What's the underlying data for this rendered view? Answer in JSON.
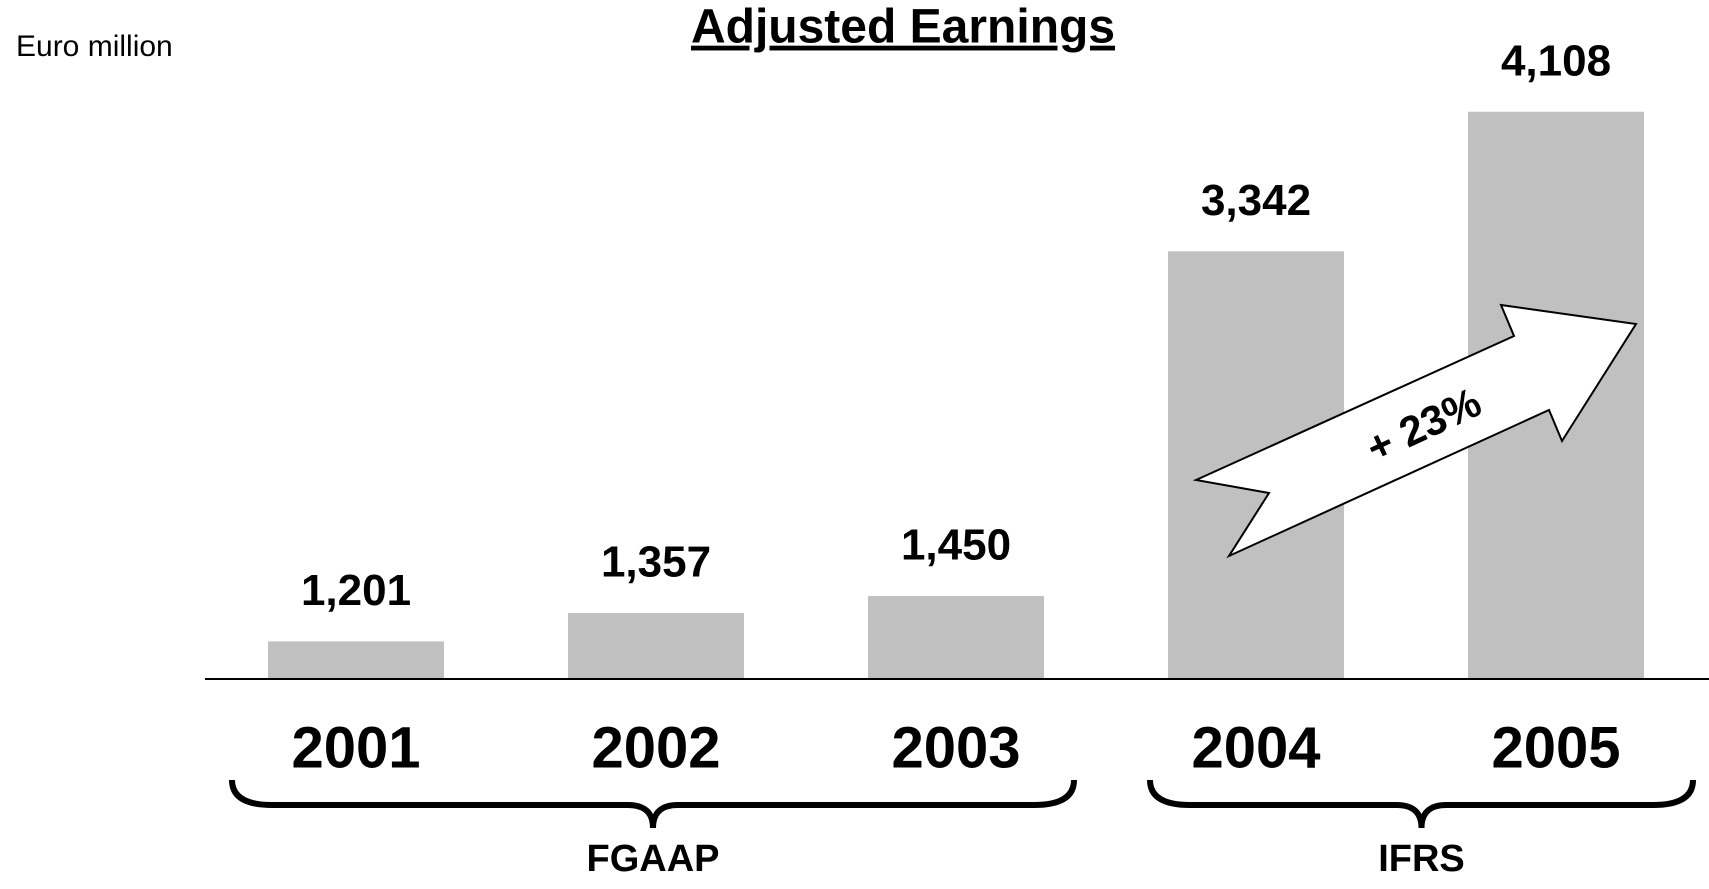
{
  "chart_data": {
    "type": "bar",
    "title": "Adjusted Earnings",
    "y_unit": "Euro million",
    "categories": [
      "2001",
      "2002",
      "2003",
      "2004",
      "2005"
    ],
    "values": [
      1201,
      1357,
      1450,
      3342,
      4108
    ],
    "value_labels": [
      "1,201",
      "1,357",
      "1,450",
      "3,342",
      "4,108"
    ],
    "color": "#c0c0c0",
    "ylim": [
      1000,
      4200
    ],
    "groups": [
      {
        "label": "FGAAP"
      },
      {
        "label": "IFRS"
      }
    ],
    "annotation": "+ 23%"
  }
}
